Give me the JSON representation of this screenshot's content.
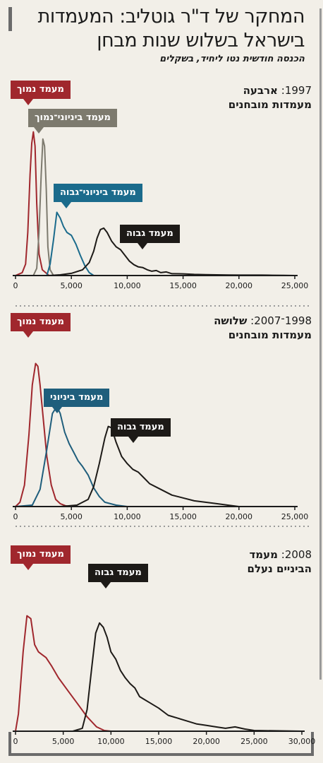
{
  "header": {
    "title_line1": "המחקר של ד\"ר גוטליב: המעמדות",
    "title_line2": "בישראל בשלוש שנות מבחן",
    "subtitle": "הכנסה חודשית נטו ליחיד, בשקלים"
  },
  "colors": {
    "low": "#a0272d",
    "lower_middle": "#7d7a6e",
    "middle": "#1f5e7c",
    "upper_middle": "#1b6b8c",
    "high": "#1d1a17",
    "background": "#f2efe8",
    "frame": "#6b6b6b"
  },
  "chart_data": [
    {
      "type": "line",
      "panel_year": "1997",
      "panel_label_bold": "ארבעה",
      "panel_label_line2": "מעמדות מובחנים",
      "xlim": [
        0,
        25000
      ],
      "xticks": [
        0,
        5000,
        10000,
        15000,
        20000,
        25000
      ],
      "xtick_labels": [
        "0",
        "5,000",
        "10,000",
        "15,000",
        "20,000",
        "25,000"
      ],
      "series": [
        {
          "name": "מעמד נמוך",
          "color_key": "low",
          "x": [
            0,
            600,
            900,
            1100,
            1300,
            1450,
            1600,
            1750,
            1900,
            2100,
            2400,
            3000,
            25000
          ],
          "y": [
            0,
            2,
            8,
            30,
            70,
            92,
            100,
            90,
            50,
            15,
            4,
            0,
            0
          ]
        },
        {
          "name": "מעמד ביניוני־נמוך",
          "color_key": "lower_middle",
          "x": [
            0,
            1600,
            1900,
            2100,
            2300,
            2450,
            2600,
            2750,
            2900,
            3100,
            3400,
            25000
          ],
          "y": [
            0,
            0,
            5,
            30,
            70,
            95,
            90,
            60,
            20,
            4,
            0,
            0
          ]
        },
        {
          "name": "מעמד ביניוני־גבוה",
          "color_key": "upper_middle",
          "x": [
            0,
            2800,
            3100,
            3400,
            3700,
            4000,
            4300,
            4600,
            5000,
            5400,
            5800,
            6200,
            6600,
            7000,
            7400,
            7800,
            8200,
            8600,
            9000,
            25000
          ],
          "y": [
            0,
            0,
            8,
            25,
            44,
            40,
            34,
            30,
            28,
            22,
            14,
            7,
            2,
            0,
            0,
            0,
            0,
            0,
            0,
            0
          ]
        },
        {
          "name": "מעמד גבוה",
          "color_key": "high",
          "x": [
            0,
            3000,
            4000,
            5000,
            6000,
            6600,
            7000,
            7300,
            7600,
            7900,
            8200,
            8600,
            9000,
            9400,
            9800,
            10200,
            10600,
            11000,
            11400,
            11800,
            12200,
            12600,
            13000,
            13500,
            14000,
            15000,
            16000,
            17000,
            18000,
            19000,
            20000,
            21000,
            22000,
            23000,
            24000,
            25000
          ],
          "y": [
            0,
            0,
            0.5,
            1.5,
            4,
            9,
            17,
            26,
            32,
            33,
            30,
            24,
            20,
            18,
            14,
            10,
            7.5,
            6,
            5.5,
            4,
            3,
            3.5,
            2,
            2.5,
            1.3,
            1.2,
            0.8,
            0.6,
            0.5,
            0.4,
            0.3,
            0.3,
            0.3,
            0.2,
            0.1,
            0
          ]
        }
      ],
      "ylim": [
        0,
        118
      ]
    },
    {
      "type": "line",
      "panel_year": "1998־2007",
      "panel_label_bold": "שלושה",
      "panel_label_line2": "מעמדות מובחנים",
      "xlim": [
        0,
        25000
      ],
      "xticks": [
        0,
        5000,
        10000,
        15000,
        20000,
        25000
      ],
      "xtick_labels": [
        "0",
        "5,000",
        "10,000",
        "15,000",
        "20,000",
        "25,000"
      ],
      "series": [
        {
          "name": "מעמד נמוך",
          "color_key": "low",
          "x": [
            0,
            400,
            800,
            1200,
            1500,
            1800,
            2000,
            2200,
            2500,
            2800,
            3200,
            3600,
            4000,
            4500,
            5000,
            25000
          ],
          "y": [
            0,
            3,
            15,
            50,
            85,
            100,
            98,
            85,
            60,
            35,
            15,
            5,
            2,
            0.5,
            0,
            0
          ]
        },
        {
          "name": "מעמד ביניוני",
          "color_key": "middle",
          "x": [
            0,
            1500,
            2200,
            2800,
            3300,
            3700,
            4000,
            4400,
            4800,
            5200,
            5600,
            6000,
            6500,
            7000,
            7500,
            8000,
            9000,
            10000,
            25000
          ],
          "y": [
            0,
            1,
            12,
            40,
            65,
            70,
            65,
            52,
            44,
            38,
            32,
            28,
            22,
            13,
            7,
            3,
            1,
            0,
            0
          ]
        },
        {
          "name": "מעמד גבוה",
          "color_key": "high",
          "x": [
            0,
            4000,
            5500,
            6500,
            7000,
            7500,
            8000,
            8300,
            8600,
            9000,
            9500,
            10000,
            10500,
            11000,
            11500,
            12000,
            13000,
            14000,
            15000,
            16000,
            17000,
            18000,
            19000,
            20000,
            25000
          ],
          "y": [
            0,
            0,
            1,
            5,
            14,
            30,
            48,
            56,
            55,
            45,
            35,
            30,
            26,
            24,
            20,
            16,
            12,
            8,
            6,
            4,
            3,
            2,
            1,
            0,
            0
          ]
        }
      ],
      "ylim": [
        0,
        118
      ]
    },
    {
      "type": "line",
      "panel_year": "2008",
      "panel_label_bold": "מעמד",
      "panel_label_line2": "הביניים נעלם",
      "xlim": [
        0,
        30000
      ],
      "xticks": [
        0,
        5000,
        10000,
        15000,
        20000,
        25000,
        30000
      ],
      "xtick_labels": [
        "0",
        "5,000",
        "10,000",
        "15,000",
        "20,000",
        "25,000",
        "30,000"
      ],
      "series": [
        {
          "name": "מעמד נמוך",
          "color_key": "low",
          "x": [
            0,
            300,
            800,
            1200,
            1600,
            2000,
            2400,
            2800,
            3200,
            3800,
            4500,
            5500,
            6500,
            7500,
            8500,
            9300,
            10000,
            30000
          ],
          "y": [
            0,
            12,
            55,
            80,
            78,
            60,
            55,
            53,
            51,
            45,
            37,
            28,
            19,
            10,
            3,
            0.5,
            0,
            0
          ]
        },
        {
          "name": "מעמד גבוה",
          "color_key": "high",
          "x": [
            0,
            6000,
            7000,
            7500,
            8000,
            8400,
            8800,
            9200,
            9600,
            10000,
            10500,
            11000,
            11500,
            12000,
            12500,
            13000,
            13500,
            14000,
            15000,
            16000,
            17000,
            18000,
            19000,
            20000,
            21000,
            22000,
            23000,
            24000,
            25000,
            30000
          ],
          "y": [
            0,
            0,
            2,
            15,
            45,
            68,
            75,
            72,
            65,
            55,
            50,
            42,
            37,
            33,
            30,
            24,
            22,
            20,
            16,
            11,
            9,
            7,
            5,
            4,
            3,
            2,
            3,
            1.5,
            0.5,
            0
          ]
        }
      ],
      "ylim": [
        0,
        118
      ]
    }
  ]
}
